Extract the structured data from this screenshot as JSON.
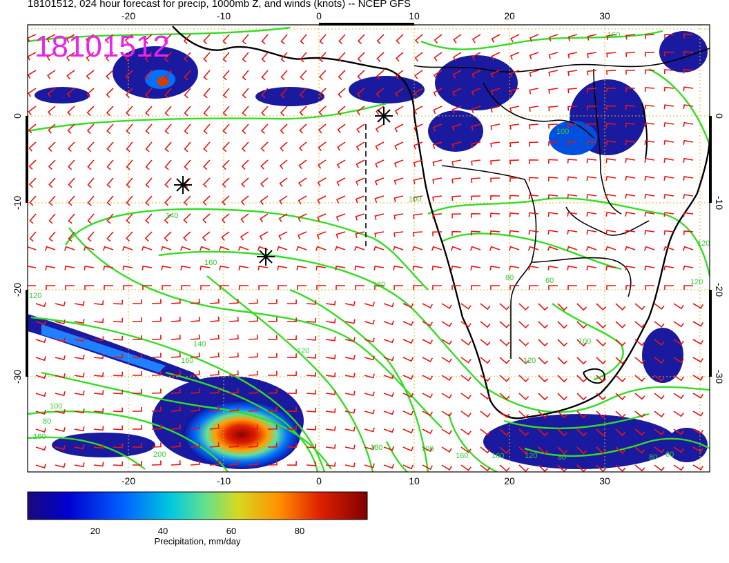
{
  "header": {
    "title": "18101512, 024 hour forecast for precip, 1000mb Z, and winds (knots) -- NCEP GFS"
  },
  "map": {
    "stamp": "18101512",
    "lon_ticks": [
      "-20",
      "-10",
      "0",
      "10",
      "20",
      "30"
    ],
    "lat_ticks": [
      "0",
      "-10",
      "-20",
      "-30"
    ],
    "lon_range": [
      -30,
      40
    ],
    "lat_range": [
      -40,
      10
    ],
    "graticule_color": "#e6b422",
    "contour_color": "#33dd22",
    "barb_color": "#ee1111",
    "coast_color": "#000000",
    "contour_labels": [
      "140",
      "160",
      "120",
      "140",
      "160",
      "120",
      "100",
      "180",
      "160",
      "180",
      "100",
      "80",
      "160",
      "120",
      "200",
      "100",
      "160",
      "160",
      "120",
      "80",
      "120",
      "80",
      "60",
      "100",
      "60",
      "80",
      "100",
      "120"
    ]
  },
  "colorbar": {
    "ticks": [
      "20",
      "40",
      "60",
      "80"
    ],
    "range": [
      0,
      100
    ],
    "label": "Precipitation, mm/day",
    "colors": [
      "#1a0a7a",
      "#0000d0",
      "#0060ff",
      "#00c8e0",
      "#60e090",
      "#d8d820",
      "#ff9000",
      "#e02000",
      "#800000"
    ]
  }
}
